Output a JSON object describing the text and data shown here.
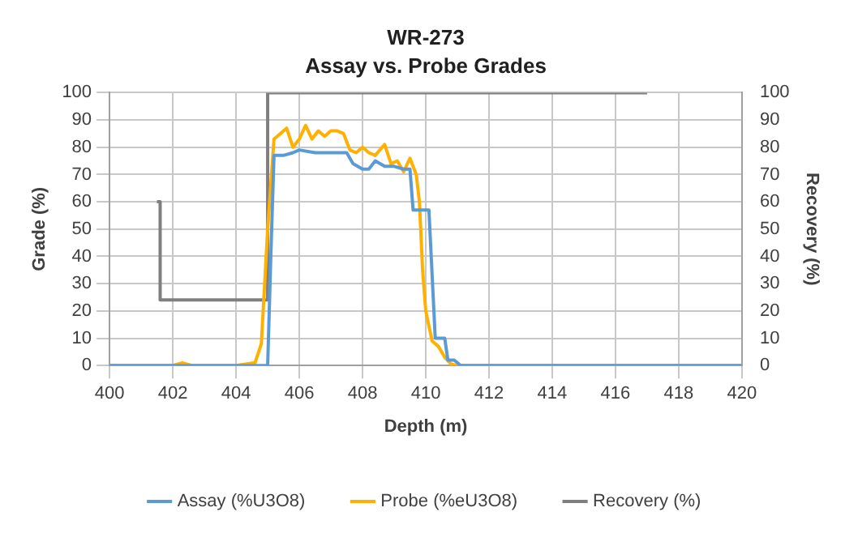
{
  "chart_data": {
    "type": "line",
    "title": "WR-273",
    "subtitle": "Assay vs. Probe Grades",
    "xlabel": "Depth (m)",
    "ylabel": "Grade (%)",
    "y2label": "Recovery (%)",
    "xlim": [
      400,
      420
    ],
    "xticks": [
      400,
      402,
      404,
      406,
      408,
      410,
      412,
      414,
      416,
      418,
      420
    ],
    "ylim": [
      0,
      100
    ],
    "yticks": [
      0,
      10,
      20,
      30,
      40,
      50,
      60,
      70,
      80,
      90,
      100
    ],
    "y2lim": [
      0,
      100
    ],
    "y2ticks": [
      0,
      10,
      20,
      30,
      40,
      50,
      60,
      70,
      80,
      90,
      100
    ],
    "grid": true,
    "legend": "bottom",
    "marker": "none",
    "line_style": "solid",
    "series": [
      {
        "name": "Assay (%U3O8)",
        "color": "#5b9bd5",
        "x": [
          400,
          405.0,
          405.1,
          405.2,
          405.5,
          405.8,
          406.0,
          406.5,
          407.0,
          407.5,
          407.7,
          408.0,
          408.2,
          408.4,
          408.7,
          409.0,
          409.3,
          409.5,
          409.6,
          409.7,
          410.0,
          410.1,
          410.3,
          410.5,
          410.6,
          410.7,
          410.9,
          411.0,
          411.1,
          420
        ],
        "values": [
          0,
          0,
          40,
          77,
          77,
          78,
          79,
          78,
          78,
          78,
          74,
          72,
          72,
          75,
          73,
          73,
          72,
          72,
          57,
          57,
          57,
          57,
          10,
          10,
          10,
          2,
          2,
          1,
          0,
          0
        ]
      },
      {
        "name": "Probe (%eU3O8)",
        "color": "#ffb000",
        "x": [
          400,
          402.0,
          402.3,
          402.6,
          404.0,
          404.6,
          404.8,
          405.0,
          405.2,
          405.4,
          405.6,
          405.8,
          406.0,
          406.2,
          406.4,
          406.6,
          406.8,
          407.0,
          407.2,
          407.4,
          407.6,
          407.8,
          408.0,
          408.2,
          408.4,
          408.7,
          408.9,
          409.1,
          409.3,
          409.5,
          409.7,
          409.8,
          409.9,
          410.0,
          410.2,
          410.4,
          410.6,
          410.8,
          411.0,
          420
        ],
        "values": [
          0,
          0,
          1,
          0,
          0,
          1,
          8,
          50,
          83,
          85,
          87,
          80,
          83,
          88,
          83,
          86,
          84,
          86,
          86,
          85,
          79,
          78,
          80,
          78,
          77,
          81,
          74,
          75,
          71,
          76,
          70,
          60,
          35,
          20,
          9,
          7,
          3,
          0.5,
          0,
          0
        ]
      },
      {
        "name": "Recovery (%)",
        "color": "#7f7f7f",
        "axis": "y2",
        "type": "step",
        "x": [
          401.5,
          401.6,
          405.0,
          417.0
        ],
        "values": [
          60,
          24,
          100,
          100
        ]
      }
    ]
  }
}
